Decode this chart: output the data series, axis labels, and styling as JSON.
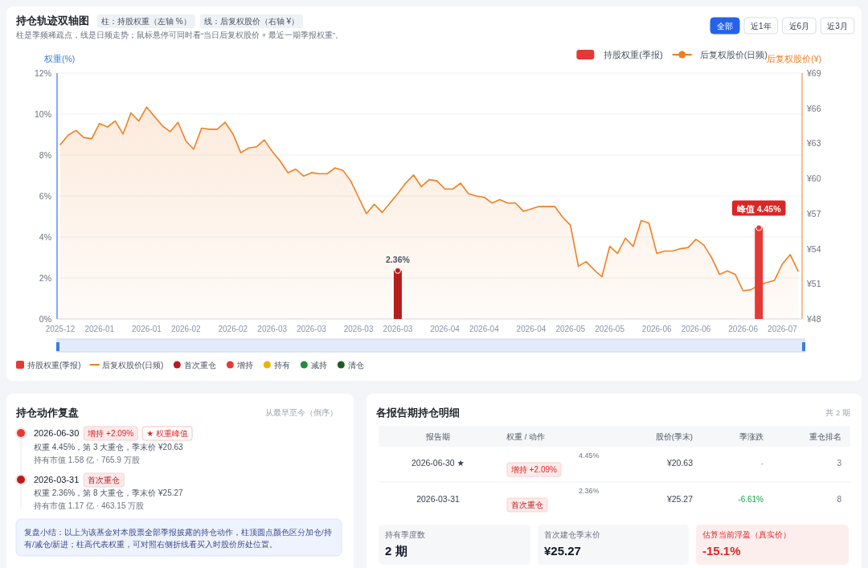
{
  "chart_data": [
    {
      "type": "bar",
      "title": "持仓轨迹双轴图",
      "subtitle": "柱是季频稀疏点，线是日频走势；鼠标悬停可同时看“当日后复权股价 + 最近一期季报权重”。",
      "annotations": [
        "柱：持股权重（左轴 %）",
        "线：后复权股价（右轴 ¥）",
        "全部",
        "近1年",
        "近6月",
        "近3月"
      ],
      "ylabel": "权重(%)",
      "y2label": "后复权股价(¥)",
      "categories": [
        "2025-12",
        null,
        null,
        null,
        null,
        "2026-01",
        null,
        null,
        null,
        null,
        null,
        "2026-01",
        null,
        null,
        null,
        null,
        "2026-02",
        null,
        null,
        null,
        null,
        null,
        "2026-02",
        null,
        null,
        null,
        null,
        "2026-03",
        null,
        null,
        null,
        null,
        "2026-03",
        null,
        null,
        null,
        null,
        null,
        "2026-03",
        null,
        null,
        null,
        null,
        "2026-03",
        null,
        null,
        null,
        null,
        null,
        "2026-04",
        null,
        null,
        null,
        null,
        "2026-04",
        null,
        null,
        null,
        null,
        null,
        "2026-04",
        null,
        null,
        null,
        null,
        "2026-05",
        null,
        null,
        null,
        null,
        "2026-05",
        null,
        null,
        null,
        null,
        null,
        "2026-06",
        null,
        null,
        null,
        null,
        "2026-06",
        null,
        null,
        null,
        null,
        null,
        "2026-06",
        null,
        null,
        null,
        null,
        "2026-07",
        null,
        null
      ],
      "ylim": [
        0,
        12
      ],
      "yticks": [
        {
          "value": 0,
          "label": "0%"
        },
        {
          "value": 2,
          "label": "2%"
        },
        {
          "value": 4,
          "label": "4%"
        },
        {
          "value": 6,
          "label": "6%"
        },
        {
          "value": 8,
          "label": "8%"
        },
        {
          "value": 10,
          "label": "10%"
        },
        {
          "value": 12,
          "label": "12%"
        }
      ],
      "y2lim": [
        48,
        69
      ],
      "y2ticks": [
        {
          "value": 48,
          "label": "¥48"
        },
        {
          "value": 51,
          "label": "¥51"
        },
        {
          "value": 54,
          "label": "¥54"
        },
        {
          "value": 57,
          "label": "¥57"
        },
        {
          "value": 60,
          "label": "¥60"
        },
        {
          "value": 63,
          "label": "¥63"
        },
        {
          "value": 66,
          "label": "¥66"
        },
        {
          "value": 69,
          "label": "¥69"
        }
      ],
      "grid": "y",
      "legend": "bottom",
      "series": [
        {
          "type": "bar",
          "name": "持股权重(季报)",
          "color": "#e53935",
          "values": [
            null,
            null,
            null,
            null,
            null,
            null,
            null,
            null,
            null,
            null,
            null,
            null,
            null,
            null,
            null,
            null,
            null,
            null,
            null,
            null,
            null,
            null,
            null,
            null,
            null,
            null,
            null,
            null,
            null,
            null,
            null,
            null,
            null,
            null,
            null,
            null,
            null,
            null,
            null,
            null,
            null,
            null,
            null,
            2.36,
            null,
            null,
            null,
            null,
            null,
            null,
            null,
            null,
            null,
            null,
            null,
            null,
            null,
            null,
            null,
            null,
            null,
            null,
            null,
            null,
            null,
            null,
            null,
            null,
            null,
            null,
            null,
            null,
            null,
            null,
            null,
            null,
            null,
            null,
            null,
            null,
            null,
            null,
            null,
            null,
            null,
            null,
            null,
            null,
            null,
            4.45,
            null,
            null,
            null,
            null,
            null
          ],
          "colors": [
            null,
            null,
            null,
            null,
            null,
            null,
            null,
            null,
            null,
            null,
            null,
            null,
            null,
            null,
            null,
            null,
            null,
            null,
            null,
            null,
            null,
            null,
            null,
            null,
            null,
            null,
            null,
            null,
            null,
            null,
            null,
            null,
            null,
            null,
            null,
            null,
            null,
            null,
            null,
            null,
            null,
            null,
            null,
            "#b71c1c",
            null,
            null,
            null,
            null,
            null,
            null,
            null,
            null,
            null,
            null,
            null,
            null,
            null,
            null,
            null,
            null,
            null,
            null,
            null,
            null,
            null,
            null,
            null,
            null,
            null,
            null,
            null,
            null,
            null,
            null,
            null,
            null,
            null,
            null,
            null,
            null,
            null,
            null,
            null,
            null,
            null,
            null,
            null,
            null,
            null,
            "#e53935",
            null,
            null,
            null,
            null,
            null
          ],
          "value_labels": [
            null,
            null,
            null,
            null,
            null,
            null,
            null,
            null,
            null,
            null,
            null,
            null,
            null,
            null,
            null,
            null,
            null,
            null,
            null,
            null,
            null,
            null,
            null,
            null,
            null,
            null,
            null,
            null,
            null,
            null,
            null,
            null,
            null,
            null,
            null,
            null,
            null,
            null,
            null,
            null,
            null,
            null,
            null,
            "2.36%",
            null,
            null,
            null,
            null,
            null,
            null,
            null,
            null,
            null,
            null,
            null,
            null,
            null,
            null,
            null,
            null,
            null,
            null,
            null,
            null,
            null,
            null,
            null,
            null,
            null,
            null,
            null,
            null,
            null,
            null,
            null,
            null,
            null,
            null,
            null,
            null,
            null,
            null,
            null,
            null,
            null,
            null,
            null,
            null,
            null,
            "峰值 4.45%",
            null,
            null,
            null,
            null,
            null
          ]
        },
        {
          "type": "area",
          "name": "后复权股价(日频)",
          "color": "#f07f22",
          "axis": "y2",
          "values": [
            62.9,
            63.7,
            64.1,
            63.5,
            63.4,
            64.7,
            64.4,
            64.9,
            63.8,
            65.6,
            64.9,
            66.1,
            65.3,
            64.5,
            64.0,
            64.8,
            63.2,
            62.5,
            64.3,
            64.2,
            64.2,
            64.8,
            63.8,
            62.2,
            62.6,
            62.7,
            63.3,
            62.3,
            61.5,
            60.5,
            60.8,
            60.2,
            60.5,
            60.4,
            60.4,
            60.9,
            60.7,
            59.8,
            58.4,
            57.0,
            57.8,
            57.1,
            57.9,
            58.7,
            59.6,
            60.3,
            59.3,
            59.9,
            59.8,
            59.1,
            59.1,
            59.6,
            58.7,
            58.5,
            58.4,
            57.9,
            58.2,
            57.9,
            57.9,
            57.2,
            57.4,
            57.6,
            57.6,
            57.6,
            56.7,
            56.0,
            52.5,
            52.9,
            52.2,
            51.6,
            54.2,
            53.6,
            54.9,
            54.2,
            56.4,
            56.2,
            53.6,
            53.8,
            53.8,
            54.0,
            54.1,
            54.8,
            54.3,
            53.2,
            51.8,
            52.1,
            51.8,
            50.4,
            50.5,
            50.9,
            51.1,
            51.3,
            52.7,
            53.5,
            52.1
          ]
        },
        {
          "type": "scatter",
          "name": "首次重仓",
          "color": "#b71c1c",
          "marker": "circle",
          "values": [
            null,
            null,
            null,
            null,
            null,
            null,
            null,
            null,
            null,
            null,
            null,
            null,
            null,
            null,
            null,
            null,
            null,
            null,
            null,
            null,
            null,
            null,
            null,
            null,
            null,
            null,
            null,
            null,
            null,
            null,
            null,
            null,
            null,
            null,
            null,
            null,
            null,
            null,
            null,
            null,
            null,
            null,
            null,
            2.36,
            null,
            null,
            null,
            null,
            null,
            null,
            null,
            null,
            null,
            null,
            null,
            null,
            null,
            null,
            null,
            null,
            null,
            null,
            null,
            null,
            null,
            null,
            null,
            null,
            null,
            null,
            null,
            null,
            null,
            null,
            null,
            null,
            null,
            null,
            null,
            null,
            null,
            null,
            null,
            null,
            null,
            null,
            null,
            null,
            null,
            null,
            null,
            null,
            null,
            null,
            null
          ]
        },
        {
          "type": "scatter",
          "name": "增持",
          "color": "#e53935",
          "marker": "circle",
          "values": [
            null,
            null,
            null,
            null,
            null,
            null,
            null,
            null,
            null,
            null,
            null,
            null,
            null,
            null,
            null,
            null,
            null,
            null,
            null,
            null,
            null,
            null,
            null,
            null,
            null,
            null,
            null,
            null,
            null,
            null,
            null,
            null,
            null,
            null,
            null,
            null,
            null,
            null,
            null,
            null,
            null,
            null,
            null,
            null,
            null,
            null,
            null,
            null,
            null,
            null,
            null,
            null,
            null,
            null,
            null,
            null,
            null,
            null,
            null,
            null,
            null,
            null,
            null,
            null,
            null,
            null,
            null,
            null,
            null,
            null,
            null,
            null,
            null,
            null,
            null,
            null,
            null,
            null,
            null,
            null,
            null,
            null,
            null,
            null,
            null,
            null,
            null,
            null,
            null,
            4.45,
            null,
            null,
            null,
            null,
            null
          ]
        },
        {
          "type": "scatter",
          "name": "持有",
          "color": "#eab308",
          "marker": "circle",
          "values": [
            null,
            null,
            null,
            null,
            null,
            null,
            null,
            null,
            null,
            null,
            null,
            null,
            null,
            null,
            null,
            null,
            null,
            null,
            null,
            null,
            null,
            null,
            null,
            null,
            null,
            null,
            null,
            null,
            null,
            null,
            null,
            null,
            null,
            null,
            null,
            null,
            null,
            null,
            null,
            null,
            null,
            null,
            null,
            null,
            null,
            null,
            null,
            null,
            null,
            null,
            null,
            null,
            null,
            null,
            null,
            null,
            null,
            null,
            null,
            null,
            null,
            null,
            null,
            null,
            null,
            null,
            null,
            null,
            null,
            null,
            null,
            null,
            null,
            null,
            null,
            null,
            null,
            null,
            null,
            null,
            null,
            null,
            null,
            null,
            null,
            null,
            null,
            null,
            null,
            null,
            null,
            null,
            null,
            null,
            null
          ]
        },
        {
          "type": "scatter",
          "name": "减持",
          "color": "#1e8f3e",
          "marker": "circle",
          "values": [
            null,
            null,
            null,
            null,
            null,
            null,
            null,
            null,
            null,
            null,
            null,
            null,
            null,
            null,
            null,
            null,
            null,
            null,
            null,
            null,
            null,
            null,
            null,
            null,
            null,
            null,
            null,
            null,
            null,
            null,
            null,
            null,
            null,
            null,
            null,
            null,
            null,
            null,
            null,
            null,
            null,
            null,
            null,
            null,
            null,
            null,
            null,
            null,
            null,
            null,
            null,
            null,
            null,
            null,
            null,
            null,
            null,
            null,
            null,
            null,
            null,
            null,
            null,
            null,
            null,
            null,
            null,
            null,
            null,
            null,
            null,
            null,
            null,
            null,
            null,
            null,
            null,
            null,
            null,
            null,
            null,
            null,
            null,
            null,
            null,
            null,
            null,
            null,
            null,
            null,
            null,
            null,
            null,
            null,
            null
          ]
        },
        {
          "type": "scatter",
          "name": "清仓",
          "color": "#1b5e20",
          "marker": "circle",
          "values": [
            null,
            null,
            null,
            null,
            null,
            null,
            null,
            null,
            null,
            null,
            null,
            null,
            null,
            null,
            null,
            null,
            null,
            null,
            null,
            null,
            null,
            null,
            null,
            null,
            null,
            null,
            null,
            null,
            null,
            null,
            null,
            null,
            null,
            null,
            null,
            null,
            null,
            null,
            null,
            null,
            null,
            null,
            null,
            null,
            null,
            null,
            null,
            null,
            null,
            null,
            null,
            null,
            null,
            null,
            null,
            null,
            null,
            null,
            null,
            null,
            null,
            null,
            null,
            null,
            null,
            null,
            null,
            null,
            null,
            null,
            null,
            null,
            null,
            null,
            null,
            null,
            null,
            null,
            null,
            null,
            null,
            null,
            null,
            null,
            null,
            null,
            null,
            null,
            null,
            null,
            null,
            null,
            null,
            null,
            null
          ]
        }
      ]
    },
    {
      "type": "other",
      "title": "持仓动作复盘",
      "annotations": [
        "从最早至今（倒序）",
        "2026-06-30",
        "增持 +2.09%",
        "★ 权重峰值",
        "权重 4.45%，第 3 大重仓，季末价 ¥20.63",
        "持有市值 1.58 亿 · 765.9 万股",
        "2026-03-31",
        "首次重仓",
        "权重 2.36%，第 8 大重仓，季末价 ¥25.27",
        "持有市值 1.17 亿 · 463.15 万股",
        "复盘小结：以上为该基金对本股票全部季报披露的持仓动作，柱顶圆点颜色区分加仓/持有/减仓/新进；柱高代表权重，可对照右侧折线看买入时股价所处位置。"
      ]
    },
    {
      "type": "other",
      "title": "各报告期持仓明细",
      "annotations": [
        "共 2 期",
        "报告期",
        "权重 / 动作",
        "股价(季末)",
        "季涨跌",
        "重仓排名",
        "2026-06-30 ★",
        "4.45%",
        "增持 +2.09%",
        "¥20.63",
        "-",
        "3",
        "2026-03-31",
        "2.36%",
        "首次重仓",
        "¥25.27",
        "-6.61%",
        "8",
        "持有季度数",
        "2 期",
        "首次建仓季末价",
        "¥25.27",
        "估算当前浮盈（真实价）",
        "-15.1%"
      ]
    }
  ]
}
